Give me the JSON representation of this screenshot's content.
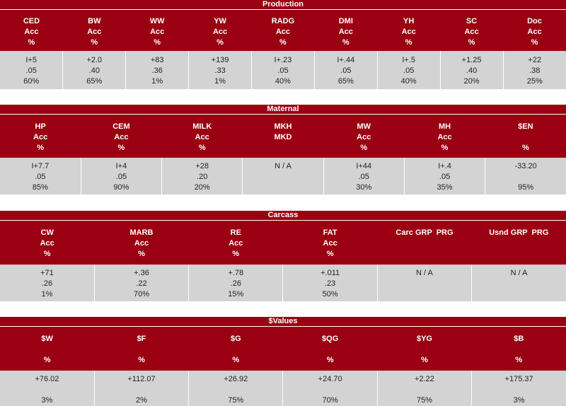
{
  "production": {
    "title": "Production",
    "columns": [
      {
        "name": "CED",
        "sub": "Acc",
        "unit": "%",
        "epd": "I+5",
        "acc": ".05",
        "pct": "60%"
      },
      {
        "name": "BW",
        "sub": "Acc",
        "unit": "%",
        "epd": "+2.0",
        "acc": ".40",
        "pct": "65%"
      },
      {
        "name": "WW",
        "sub": "Acc",
        "unit": "%",
        "epd": "+83",
        "acc": ".36",
        "pct": "1%"
      },
      {
        "name": "YW",
        "sub": "Acc",
        "unit": "%",
        "epd": "+139",
        "acc": ".33",
        "pct": "1%"
      },
      {
        "name": "RADG",
        "sub": "Acc",
        "unit": "%",
        "epd": "I+.23",
        "acc": ".05",
        "pct": "40%"
      },
      {
        "name": "DMI",
        "sub": "Acc",
        "unit": "%",
        "epd": "I+.44",
        "acc": ".05",
        "pct": "65%"
      },
      {
        "name": "YH",
        "sub": "Acc",
        "unit": "%",
        "epd": "I+.5",
        "acc": ".05",
        "pct": "40%"
      },
      {
        "name": "SC",
        "sub": "Acc",
        "unit": "%",
        "epd": "+1.25",
        "acc": ".40",
        "pct": "20%"
      },
      {
        "name": "Doc",
        "sub": "Acc",
        "unit": "%",
        "epd": "+22",
        "acc": ".38",
        "pct": "25%"
      }
    ]
  },
  "maternal": {
    "title": "Maternal",
    "columns": [
      {
        "name": "HP",
        "sub": "Acc",
        "unit": "%",
        "epd": "I+7.7",
        "acc": ".05",
        "pct": "85%"
      },
      {
        "name": "CEM",
        "sub": "Acc",
        "unit": "%",
        "epd": "I+4",
        "acc": ".05",
        "pct": "90%"
      },
      {
        "name": "MILK",
        "sub": "Acc",
        "unit": "%",
        "epd": "+28",
        "acc": ".20",
        "pct": "20%"
      },
      {
        "name": "MKH",
        "sub": "MKD",
        "unit": "",
        "epd": "N / A",
        "acc": "",
        "pct": ""
      },
      {
        "name": "MW",
        "sub": "Acc",
        "unit": "%",
        "epd": "I+44",
        "acc": ".05",
        "pct": "30%"
      },
      {
        "name": "MH",
        "sub": "Acc",
        "unit": "%",
        "epd": "I+.4",
        "acc": ".05",
        "pct": "35%"
      },
      {
        "name": "$EN",
        "sub": "",
        "unit": "%",
        "epd": "-33.20",
        "acc": "",
        "pct": "95%"
      }
    ]
  },
  "carcass": {
    "title": "Carcass",
    "columns": [
      {
        "name": "CW",
        "sub": "Acc",
        "unit": "%",
        "epd": "+71",
        "acc": ".26",
        "pct": "1%"
      },
      {
        "name": "MARB",
        "sub": "Acc",
        "unit": "%",
        "epd": "+.36",
        "acc": ".22",
        "pct": "70%"
      },
      {
        "name": "RE",
        "sub": "Acc",
        "unit": "%",
        "epd": "+.78",
        "acc": ".26",
        "pct": "15%"
      },
      {
        "name": "FAT",
        "sub": "Acc",
        "unit": "%",
        "epd": "+.011",
        "acc": ".23",
        "pct": "50%"
      },
      {
        "name": "Carc GRP  PRG",
        "sub": "",
        "unit": "",
        "epd": "N / A",
        "acc": "",
        "pct": ""
      },
      {
        "name": "Usnd GRP  PRG",
        "sub": "",
        "unit": "",
        "epd": "N / A",
        "acc": "",
        "pct": ""
      }
    ]
  },
  "values": {
    "title": "$Values",
    "columns": [
      {
        "name": "$W",
        "sub": "",
        "unit": "%",
        "epd": "+76.02",
        "acc": "",
        "pct": "3%"
      },
      {
        "name": "$F",
        "sub": "",
        "unit": "%",
        "epd": "+112.07",
        "acc": "",
        "pct": "2%"
      },
      {
        "name": "$G",
        "sub": "",
        "unit": "%",
        "epd": "+26.92",
        "acc": "",
        "pct": "75%"
      },
      {
        "name": "$QG",
        "sub": "",
        "unit": "%",
        "epd": "+24.70",
        "acc": "",
        "pct": "70%"
      },
      {
        "name": "$YG",
        "sub": "",
        "unit": "%",
        "epd": "+2.22",
        "acc": "",
        "pct": "75%"
      },
      {
        "name": "$B",
        "sub": "",
        "unit": "%",
        "epd": "+175.37",
        "acc": "",
        "pct": "3%"
      }
    ]
  },
  "colors": {
    "header_bg": "#9a0012",
    "header_text": "#ffffff",
    "cell_bg": "#d3d3d3"
  }
}
